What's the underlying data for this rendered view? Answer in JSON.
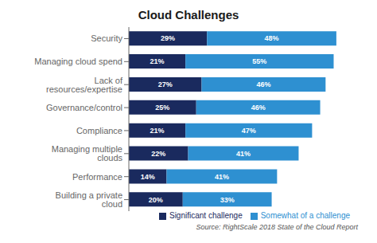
{
  "chart_data": {
    "type": "bar",
    "title": "Cloud Challenges",
    "orientation": "horizontal",
    "stacked": true,
    "categories": [
      "Building a private cloud",
      "Performance",
      "Managing multiple clouds",
      "Compliance",
      "Governance/control",
      "Lack of resources/expertise",
      "Managing cloud spend",
      "Security"
    ],
    "series": [
      {
        "name": "Significant challenge",
        "color": "#1a2a5e",
        "values": [
          20,
          14,
          22,
          21,
          25,
          27,
          21,
          29
        ],
        "value_labels": [
          "20%",
          "14%",
          "22%",
          "21%",
          "25%",
          "27%",
          "21%",
          "29%"
        ]
      },
      {
        "name": "Somewhat of a challenge",
        "color": "#2e90d1",
        "values": [
          33,
          41,
          41,
          47,
          46,
          46,
          55,
          48
        ],
        "value_labels": [
          "33%",
          "41%",
          "41%",
          "47%",
          "46%",
          "46%",
          "55%",
          "48%"
        ]
      }
    ],
    "xlim": [
      0,
      85
    ],
    "tick_labels": "y",
    "data_labels": true,
    "grid": false,
    "legend": "lower right",
    "annotations": [
      "Source: RightScale 2018 State of the Cloud Report"
    ]
  }
}
